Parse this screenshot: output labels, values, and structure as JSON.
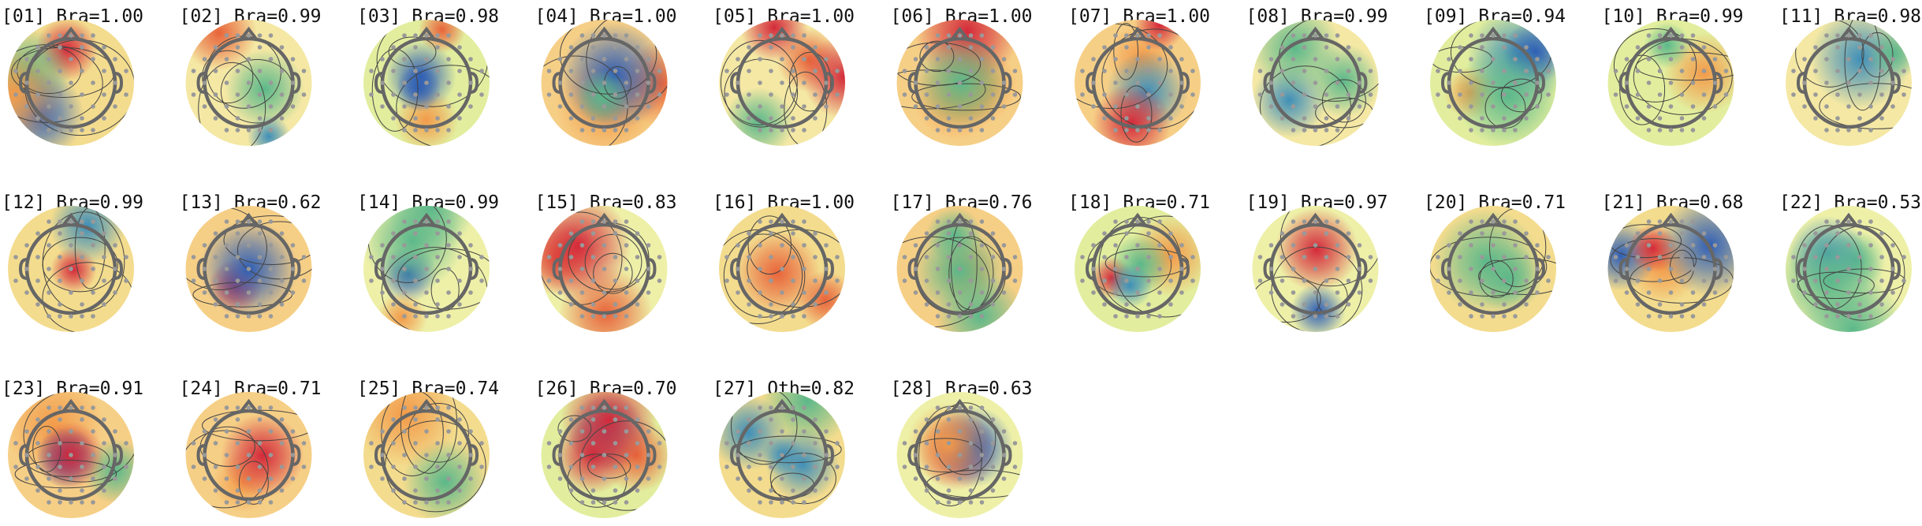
{
  "labels": [
    "[01] Bra=1.00",
    "[02] Bra=0.99",
    "[03] Bra=0.98",
    "[04] Bra=1.00",
    "[05] Bra=1.00",
    "[06] Bra=1.00",
    "[07] Bra=1.00",
    "[08] Bra=0.99",
    "[09] Bra=0.94",
    "[10] Bra=0.99",
    "[11] Bra=0.98",
    "[12] Bra=0.99",
    "[13] Bra=0.62",
    "[14] Bra=0.99",
    "[15] Bra=0.83",
    "[16] Bra=1.00",
    "[17] Bra=0.76",
    "[18] Bra=0.71",
    "[19] Bra=0.97",
    "[20] Bra=0.71",
    "[21] Bra=0.68",
    "[22] Bra=0.53",
    "[23] Bra=0.91",
    "[24] Bra=0.71",
    "[25] Bra=0.74",
    "[26] Bra=0.70",
    "[27] Oth=0.82",
    "[28] Bra=0.63"
  ]
}
